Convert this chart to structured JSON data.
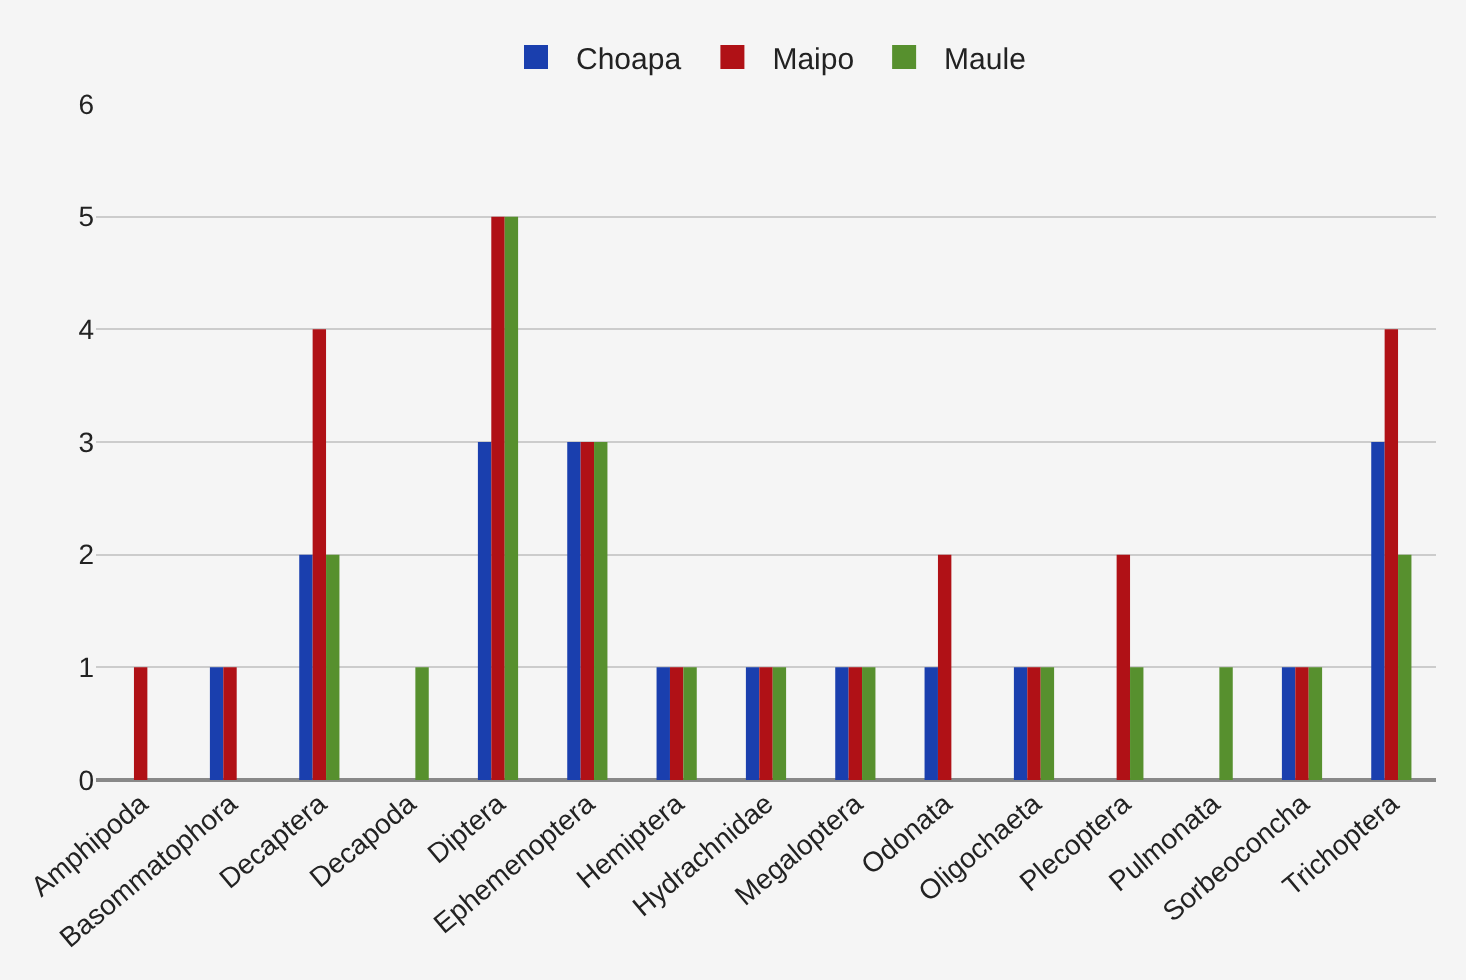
{
  "chart_data": {
    "type": "bar",
    "categories": [
      "Amphipoda",
      "Basommatophora",
      "Decaptera",
      "Decapoda",
      "Diptera",
      "Ephemenoptera",
      "Hemiptera",
      "Hydrachnidae",
      "Megaloptera",
      "Odonata",
      "Oligochaeta",
      "Plecoptera",
      "Pulmonata",
      "Sorbeoconcha",
      "Trichoptera"
    ],
    "series": [
      {
        "name": "Choapa",
        "color": "#1a3fae",
        "values": [
          0,
          1,
          2,
          0,
          3,
          3,
          1,
          1,
          1,
          1,
          1,
          0,
          0,
          1,
          3
        ]
      },
      {
        "name": "Maipo",
        "color": "#b01116",
        "values": [
          1,
          1,
          4,
          0,
          5,
          3,
          1,
          1,
          1,
          2,
          1,
          2,
          0,
          1,
          4
        ]
      },
      {
        "name": "Maule",
        "color": "#57902e",
        "values": [
          0,
          0,
          2,
          1,
          5,
          3,
          1,
          1,
          1,
          0,
          1,
          1,
          1,
          1,
          2
        ]
      }
    ],
    "ylim": [
      0,
      6
    ],
    "yticks": [
      0,
      1,
      2,
      3,
      4,
      5,
      6
    ],
    "grid": "y",
    "legend": "top"
  }
}
